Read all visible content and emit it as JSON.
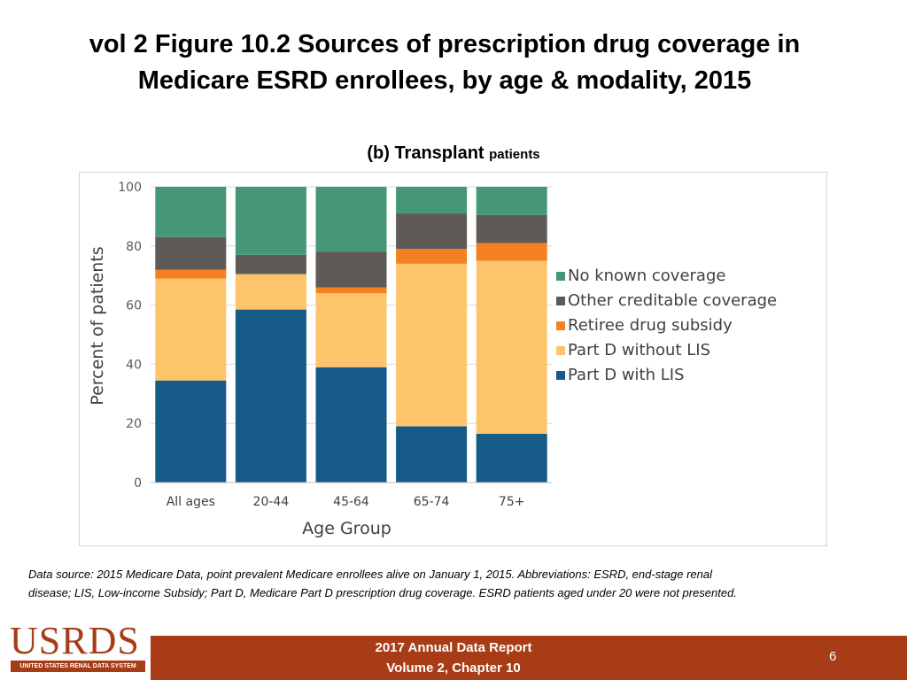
{
  "slide": {
    "title_line1": "vol 2 Figure 10.2 Sources of prescription drug coverage in",
    "title_line2": "Medicare ESRD enrollees, by age & modality, 2015"
  },
  "chart_data": {
    "type": "bar",
    "stacked": true,
    "subtitle_main": "(b) Transplant",
    "subtitle_small": "patients",
    "xlabel": "Age Group",
    "ylabel": "Percent of patients",
    "ylim": [
      0,
      100
    ],
    "yticks": [
      0,
      20,
      40,
      60,
      80,
      100
    ],
    "grid": true,
    "legend_position": "right",
    "categories": [
      "All ages",
      "20-44",
      "45-64",
      "65-74",
      "75+"
    ],
    "series": [
      {
        "name": "Part D with LIS",
        "color": "#165a87",
        "values": [
          34.5,
          58.5,
          39,
          19,
          16.5
        ]
      },
      {
        "name": "Part D without LIS",
        "color": "#fdc46b",
        "values": [
          34.5,
          12,
          25,
          55,
          58.5
        ]
      },
      {
        "name": "Retiree drug subsidy",
        "color": "#f48020",
        "values": [
          3,
          0,
          2,
          5,
          6
        ]
      },
      {
        "name": "Other creditable coverage",
        "color": "#5f5a55",
        "values": [
          11,
          6.5,
          12,
          12,
          9.5
        ]
      },
      {
        "name": "No known coverage",
        "color": "#469776",
        "values": [
          17,
          23,
          22,
          9,
          9.5
        ]
      }
    ]
  },
  "footnote": {
    "line1": "Data source: 2015 Medicare Data, point prevalent Medicare enrollees alive on January 1, 2015. Abbreviations: ESRD, end-stage renal",
    "line2": "disease; LIS, Low-income Subsidy; Part D, Medicare Part D prescription drug coverage. ESRD patients aged under 20 were not presented."
  },
  "footer": {
    "logo": "USRDS",
    "logo_sub": "UNITED STATES RENAL DATA SYSTEM",
    "report_line1": "2017 Annual Data Report",
    "report_line2": "Volume 2, Chapter 10",
    "page_number": "6"
  }
}
